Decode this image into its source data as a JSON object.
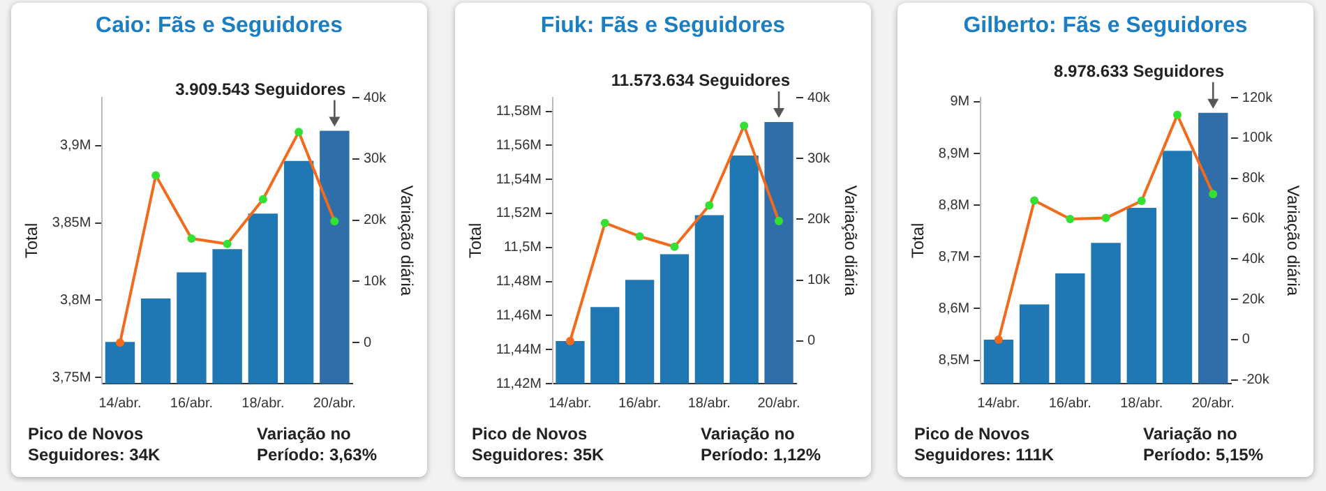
{
  "chart_data": [
    {
      "type": "bar",
      "title": "Caio: Fãs e Seguidores",
      "ylabel": "Total",
      "y2label": "Variação diária",
      "categories": [
        "14/abr.",
        null,
        "16/abr.",
        null,
        "18/abr.",
        null,
        "20/abr."
      ],
      "series": [
        {
          "colors": [
            "#1f77b4",
            "#1f77b4",
            "#1f77b4",
            "#1f77b4",
            "#1f77b4",
            "#1f77b4",
            "#2f6ea8"
          ],
          "values": [
            3.773,
            3.801,
            3.818,
            3.833,
            3.856,
            3.89,
            3.909543
          ]
        },
        {
          "type": "line",
          "axis": "y2",
          "color": "#f26b1d",
          "colors": [
            "#f26b1d",
            "#33e033",
            "#33e033",
            "#33e033",
            "#33e033",
            "#33e033",
            "#33e033"
          ],
          "marker": "circle",
          "values": [
            0,
            27300,
            17000,
            16100,
            23400,
            34400,
            19800
          ]
        }
      ],
      "ylim": [
        3.746,
        3.931
      ],
      "yticks": [
        {
          "value": 3.75,
          "label": "3,75M"
        },
        {
          "value": 3.8,
          "label": "3,8M"
        },
        {
          "value": 3.85,
          "label": "3,85M"
        },
        {
          "value": 3.9,
          "label": "3,9M"
        }
      ],
      "y2lim": [
        -6700,
        40000
      ],
      "y2ticks": [
        {
          "value": 0,
          "label": "0"
        },
        {
          "value": 10000,
          "label": "10k"
        },
        {
          "value": 20000,
          "label": "20k"
        },
        {
          "value": 30000,
          "label": "30k"
        },
        {
          "value": 40000,
          "label": "40k"
        }
      ],
      "annotations": [
        {
          "text": "3.909.543 Seguidores",
          "x": "20/abr.",
          "y": 3.909543
        },
        "Pico de Novos Seguidores: 34K",
        "Variação no Período: 3,63%"
      ],
      "grid": false,
      "legend": false
    },
    {
      "type": "bar",
      "title": "Fiuk: Fãs e Seguidores",
      "ylabel": "Total",
      "y2label": "Variação diária",
      "categories": [
        "14/abr.",
        null,
        "16/abr.",
        null,
        "18/abr.",
        null,
        "20/abr."
      ],
      "series": [
        {
          "colors": [
            "#1f77b4",
            "#1f77b4",
            "#1f77b4",
            "#1f77b4",
            "#1f77b4",
            "#1f77b4",
            "#2f6ea8"
          ],
          "values": [
            11.445,
            11.465,
            11.481,
            11.496,
            11.519,
            11.554,
            11.573634
          ]
        },
        {
          "type": "line",
          "axis": "y2",
          "color": "#f26b1d",
          "colors": [
            "#f26b1d",
            "#33e033",
            "#33e033",
            "#33e033",
            "#33e033",
            "#33e033",
            "#33e033"
          ],
          "marker": "circle",
          "values": [
            0,
            19400,
            17200,
            15500,
            22300,
            35400,
            19700
          ]
        }
      ],
      "ylim": [
        11.42,
        11.588
      ],
      "yticks": [
        {
          "value": 11.42,
          "label": "11,42M"
        },
        {
          "value": 11.44,
          "label": "11,44M"
        },
        {
          "value": 11.46,
          "label": "11,46M"
        },
        {
          "value": 11.48,
          "label": "11,48M"
        },
        {
          "value": 11.5,
          "label": "11,5M"
        },
        {
          "value": 11.52,
          "label": "11,52M"
        },
        {
          "value": 11.54,
          "label": "11,54M"
        },
        {
          "value": 11.56,
          "label": "11,56M"
        },
        {
          "value": 11.58,
          "label": "11,58M"
        }
      ],
      "y2lim": [
        -7000,
        40000
      ],
      "y2ticks": [
        {
          "value": 0,
          "label": "0"
        },
        {
          "value": 10000,
          "label": "10k"
        },
        {
          "value": 20000,
          "label": "20k"
        },
        {
          "value": 30000,
          "label": "30k"
        },
        {
          "value": 40000,
          "label": "40k"
        }
      ],
      "annotations": [
        {
          "text": "11.573.634 Seguidores",
          "x": "20/abr.",
          "y": 11.573634
        },
        "Pico de Novos Seguidores: 35K",
        "Variação no Período: 1,12%"
      ],
      "grid": false,
      "legend": false
    },
    {
      "type": "bar",
      "title": "Gilberto: Fãs e Seguidores",
      "ylabel": "Total",
      "y2label": "Variação diária",
      "categories": [
        "14/abr.",
        null,
        "16/abr.",
        null,
        "18/abr.",
        null,
        "20/abr."
      ],
      "series": [
        {
          "colors": [
            "#1f77b4",
            "#1f77b4",
            "#1f77b4",
            "#1f77b4",
            "#1f77b4",
            "#1f77b4",
            "#2f6ea8"
          ],
          "values": [
            8.54,
            8.608,
            8.668,
            8.727,
            8.795,
            8.905,
            8.978633
          ]
        },
        {
          "type": "line",
          "axis": "y2",
          "color": "#f26b1d",
          "colors": [
            "#f26b1d",
            "#33e033",
            "#33e033",
            "#33e033",
            "#33e033",
            "#33e033",
            "#33e033"
          ],
          "marker": "circle",
          "values": [
            0,
            69000,
            59800,
            60300,
            68800,
            111400,
            72200
          ]
        }
      ],
      "ylim": [
        8.455,
        9.008
      ],
      "yticks": [
        {
          "value": 8.5,
          "label": "8,5M"
        },
        {
          "value": 8.6,
          "label": "8,6M"
        },
        {
          "value": 8.7,
          "label": "8,7M"
        },
        {
          "value": 8.8,
          "label": "8,8M"
        },
        {
          "value": 8.9,
          "label": "8,9M"
        },
        {
          "value": 9,
          "label": "9M"
        }
      ],
      "y2lim": [
        -21800,
        120000
      ],
      "y2ticks": [
        {
          "value": -20000,
          "label": "-20k"
        },
        {
          "value": 0,
          "label": "0"
        },
        {
          "value": 20000,
          "label": "20k"
        },
        {
          "value": 40000,
          "label": "40k"
        },
        {
          "value": 60000,
          "label": "60k"
        },
        {
          "value": 80000,
          "label": "80k"
        },
        {
          "value": 100000,
          "label": "100k"
        },
        {
          "value": 120000,
          "label": "120k"
        }
      ],
      "annotations": [
        {
          "text": "8.978.633 Seguidores",
          "x": "20/abr.",
          "y": 8.978633
        },
        "Pico de Novos Seguidores: 111K",
        "Variação no Período: 5,15%"
      ],
      "grid": false,
      "legend": false
    }
  ]
}
